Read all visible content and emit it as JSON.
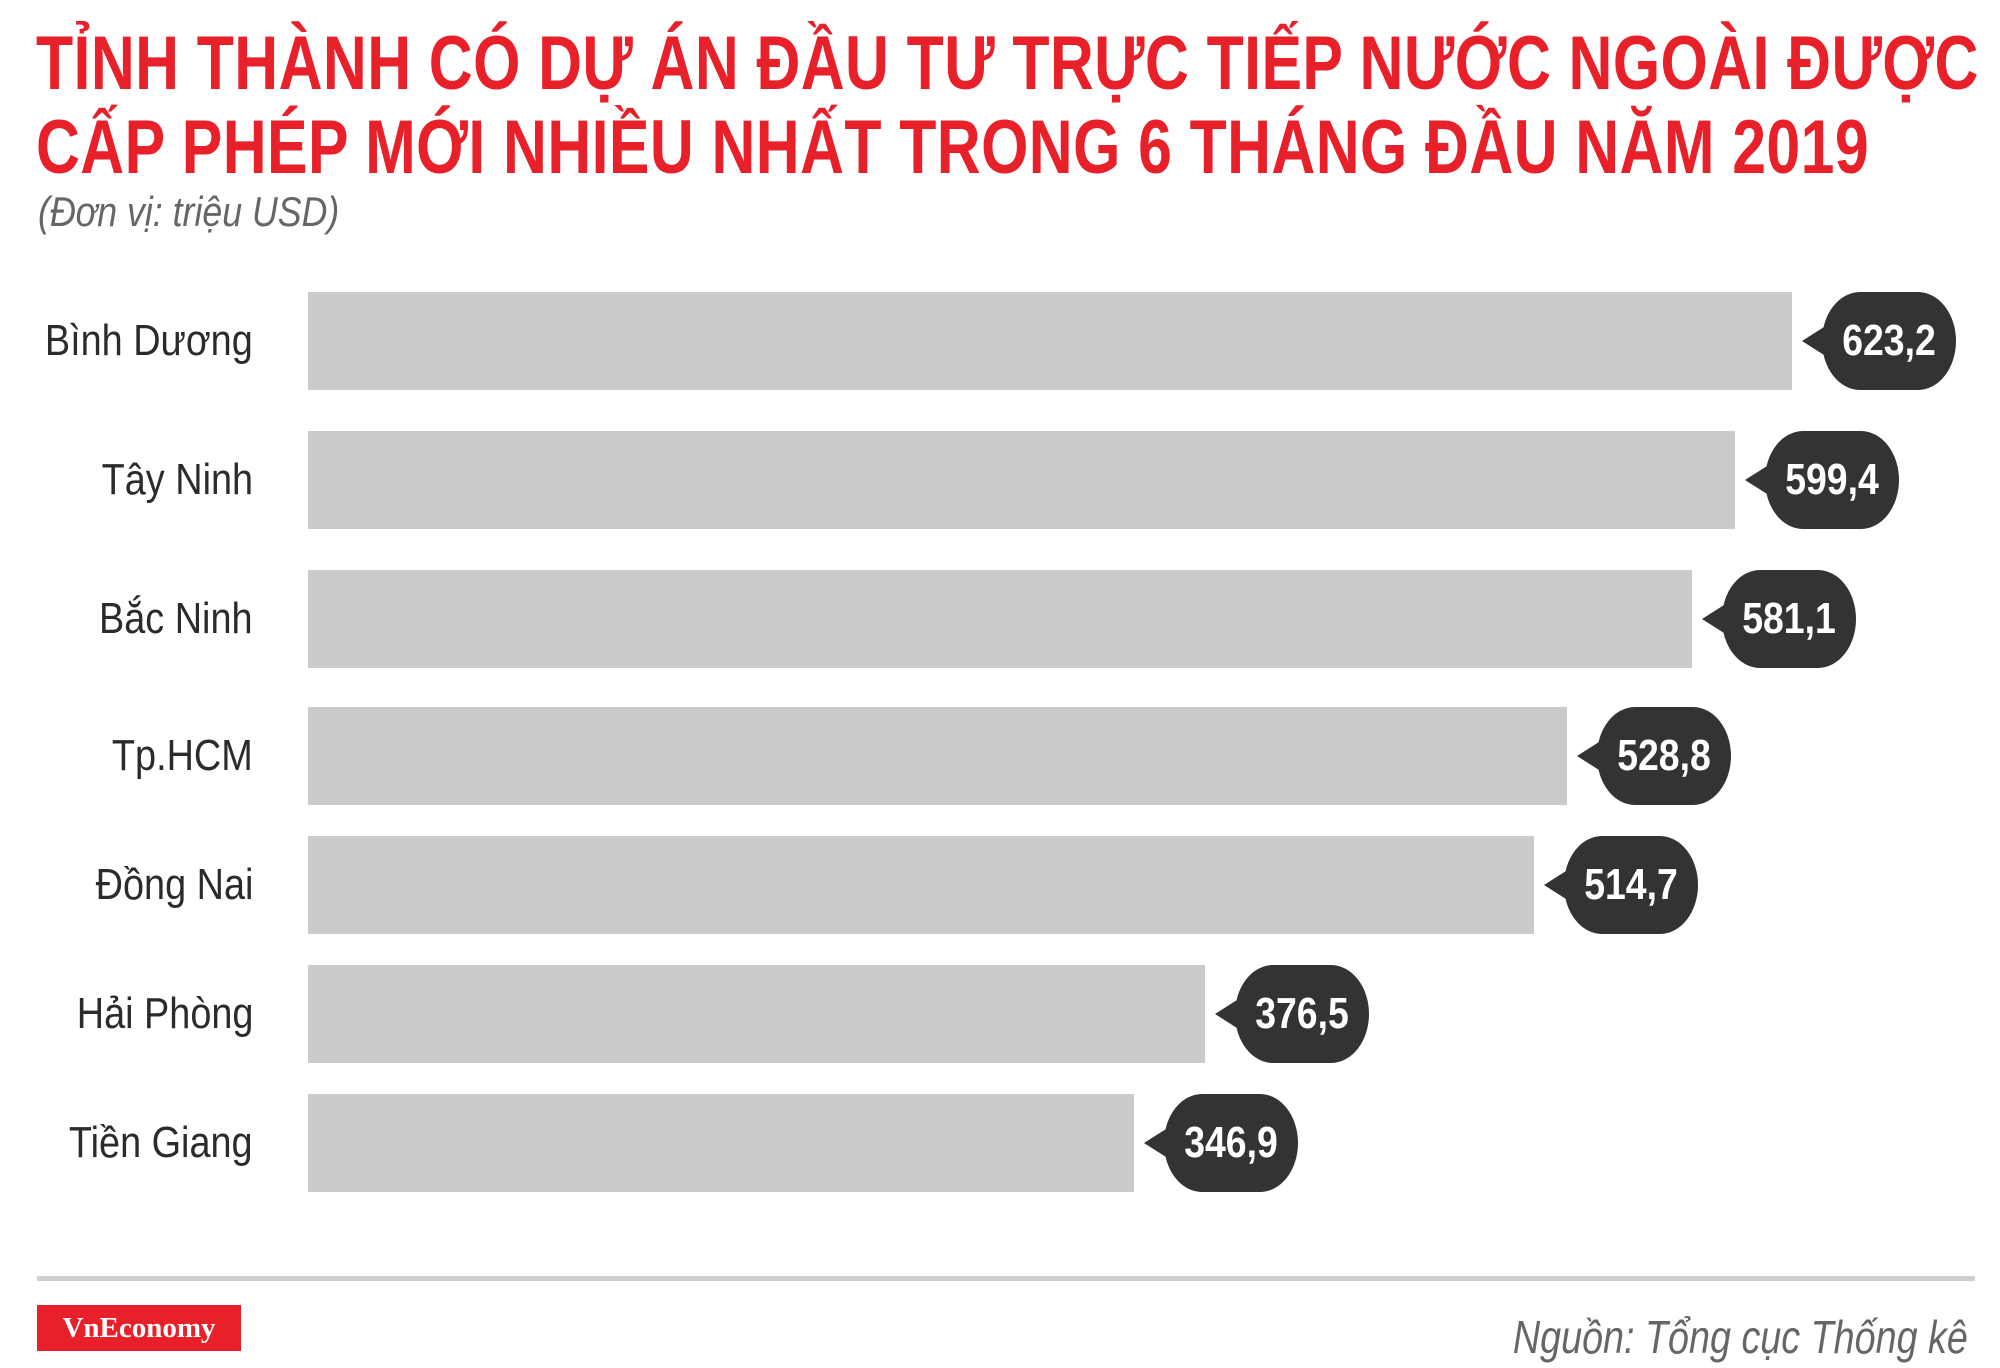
{
  "header": {
    "title_line1": "TỈNH THÀNH CÓ DỰ ÁN ĐẦU TƯ TRỰC TIẾP NƯỚC NGOÀI ĐƯỢC",
    "title_line2": "CẤP PHÉP MỚI NHIỀU NHẤT TRONG 6 THÁNG ĐẦU NĂM 2019",
    "unit": "(Đơn vị: triệu USD)"
  },
  "colors": {
    "title": "#e8202a",
    "bar": "#cccbcc",
    "bubble": "#333333",
    "logo_bg": "#e8202a"
  },
  "rows": [
    {
      "label": "Bình Dương",
      "value_text": "623,2"
    },
    {
      "label": "Tây Ninh",
      "value_text": "599,4"
    },
    {
      "label": "Bắc Ninh",
      "value_text": "581,1"
    },
    {
      "label": "Tp.HCM",
      "value_text": "528,8"
    },
    {
      "label": "Đồng Nai",
      "value_text": "514,7"
    },
    {
      "label": "Hải Phòng",
      "value_text": "376,5"
    },
    {
      "label": "Tiền Giang",
      "value_text": "346,9"
    }
  ],
  "footer": {
    "logo": "VnEconomy",
    "source": "Nguồn: Tổng cục Thống kê"
  },
  "chart_data": {
    "type": "bar",
    "orientation": "horizontal",
    "title": "TỈNH THÀNH CÓ DỰ ÁN ĐẦU TƯ TRỰC TIẾP NƯỚC NGOÀI ĐƯỢC CẤP PHÉP MỚI NHIỀU NHẤT TRONG 6 THÁNG ĐẦU NĂM 2019",
    "subtitle": "(Đơn vị: triệu USD)",
    "categories": [
      "Bình Dương",
      "Tây Ninh",
      "Bắc Ninh",
      "Tp.HCM",
      "Đồng Nai",
      "Hải Phòng",
      "Tiền Giang"
    ],
    "values": [
      623.2,
      599.4,
      581.1,
      528.8,
      514.7,
      376.5,
      346.9
    ],
    "value_labels": [
      "623,2",
      "599,4",
      "581,1",
      "528,8",
      "514,7",
      "376,5",
      "346,9"
    ],
    "xlabel": "",
    "ylabel": "",
    "unit": "triệu USD",
    "grid": false,
    "legend": null,
    "source": "Nguồn: Tổng cục Thống kê"
  }
}
